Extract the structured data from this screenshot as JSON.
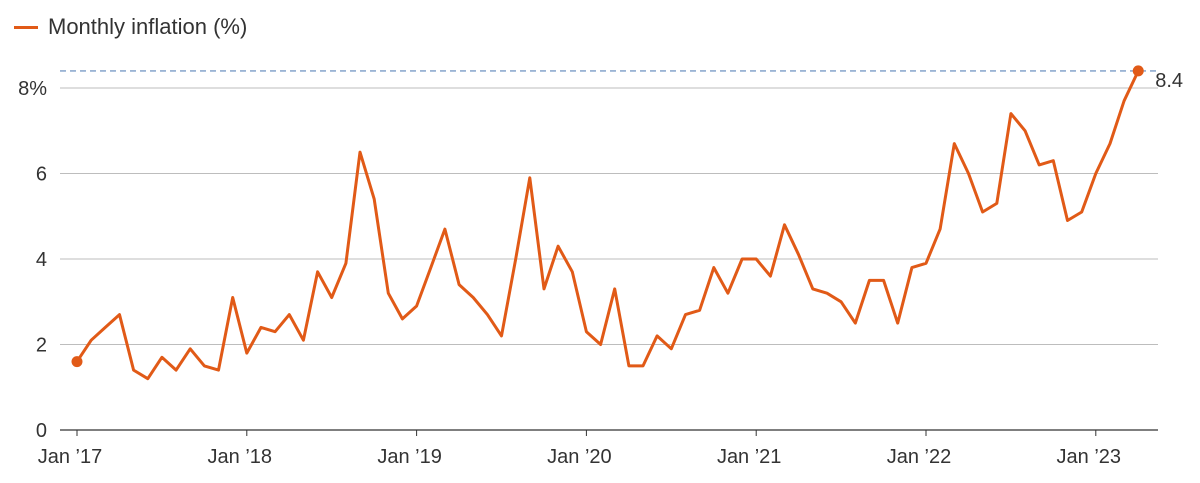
{
  "chart_data": {
    "type": "line",
    "legend": {
      "label": "Monthly inflation (%)",
      "placement": "top-left"
    },
    "x_labels": [
      "Jan ’17",
      "Jan ’18",
      "Jan ’19",
      "Jan ’20",
      "Jan ’21",
      "Jan ’22",
      "Jan ’23"
    ],
    "y_ticks": [
      {
        "value": 0,
        "label": "0"
      },
      {
        "value": 2,
        "label": "2"
      },
      {
        "value": 4,
        "label": "4"
      },
      {
        "value": 6,
        "label": "6"
      },
      {
        "value": 8,
        "label": "8%"
      }
    ],
    "ylim": [
      0,
      9
    ],
    "x_start": "2017-01",
    "grid": true,
    "reference_line": {
      "value": 8.4,
      "style": "dashed"
    },
    "end_label": "8.4",
    "series": [
      {
        "values": [
          1.6,
          2.1,
          2.4,
          2.7,
          1.4,
          1.2,
          1.7,
          1.4,
          1.9,
          1.5,
          1.4,
          3.1,
          1.8,
          2.4,
          2.3,
          2.7,
          2.1,
          3.7,
          3.1,
          3.9,
          6.5,
          5.4,
          3.2,
          2.6,
          2.9,
          3.8,
          4.7,
          3.4,
          3.1,
          2.7,
          2.2,
          4.0,
          5.9,
          3.3,
          4.3,
          3.7,
          2.3,
          2.0,
          3.3,
          1.5,
          1.5,
          2.2,
          1.9,
          2.7,
          2.8,
          3.8,
          3.2,
          4.0,
          4.0,
          3.6,
          4.8,
          4.1,
          3.3,
          3.2,
          3.0,
          2.5,
          3.5,
          3.5,
          2.5,
          3.8,
          3.9,
          4.7,
          6.7,
          6.0,
          5.1,
          5.3,
          7.4,
          7.0,
          6.2,
          6.3,
          4.9,
          5.1,
          6.0,
          6.7,
          7.7,
          8.4
        ]
      }
    ],
    "colors": {
      "line": "#e15a17",
      "reference": "#7a9cc6",
      "grid": "#bdbdbd",
      "axis": "#333333",
      "text": "#333333"
    }
  }
}
